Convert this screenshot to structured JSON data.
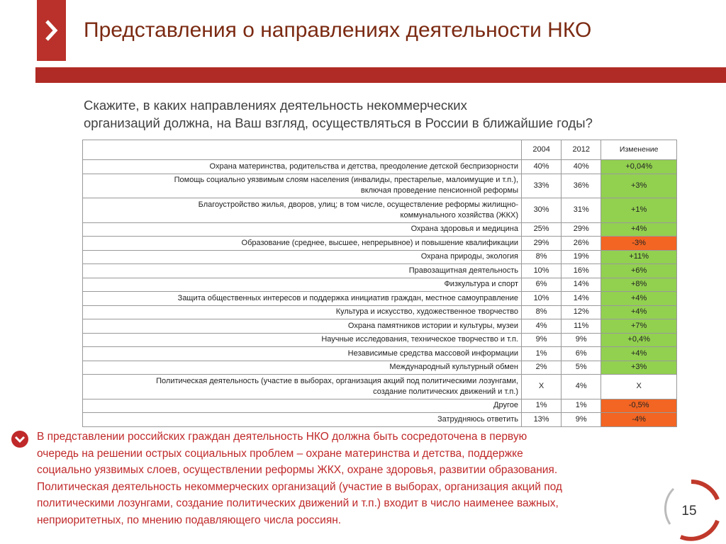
{
  "header": {
    "title": "Представления о направлениях деятельности НКО"
  },
  "question": [
    "Скажите, в каких направлениях деятельность некоммерческих",
    "организаций должна, на Ваш взгляд, осуществляться в России в ближайшие годы?"
  ],
  "table": {
    "columns": [
      "2004",
      "2012",
      "Изменение"
    ],
    "rows": [
      {
        "label": [
          "Охрана материнства, родительства и детства, преодоление детской беспризорности"
        ],
        "v2004": "40%",
        "v2012": "40%",
        "change": "+0,04%",
        "color": "#92d050"
      },
      {
        "label": [
          "Помощь социально уязвимым слоям населения (инвалиды, престарелые, малоимущие и т.п.),",
          "включая проведение пенсионной реформы"
        ],
        "v2004": "33%",
        "v2012": "36%",
        "change": "+3%",
        "color": "#92d050"
      },
      {
        "label": [
          "Благоустройство жилья, дворов, улиц; в том числе, осуществление реформы жилищно-",
          "коммунального хозяйства (ЖКХ)"
        ],
        "v2004": "30%",
        "v2012": "31%",
        "change": "+1%",
        "color": "#92d050"
      },
      {
        "label": [
          "Охрана здоровья и медицина"
        ],
        "v2004": "25%",
        "v2012": "29%",
        "change": "+4%",
        "color": "#92d050"
      },
      {
        "label": [
          "Образование (среднее, высшее, непрерывное) и повышение квалификации"
        ],
        "v2004": "29%",
        "v2012": "26%",
        "change": "-3%",
        "color": "#f26522"
      },
      {
        "label": [
          "Охрана природы, экология"
        ],
        "v2004": "8%",
        "v2012": "19%",
        "change": "+11%",
        "color": "#92d050"
      },
      {
        "label": [
          "Правозащитная деятельность"
        ],
        "v2004": "10%",
        "v2012": "16%",
        "change": "+6%",
        "color": "#92d050"
      },
      {
        "label": [
          "Физкультура и спорт"
        ],
        "v2004": "6%",
        "v2012": "14%",
        "change": "+8%",
        "color": "#92d050"
      },
      {
        "label": [
          "Защита общественных интересов и поддержка инициатив граждан, местное самоуправление"
        ],
        "v2004": "10%",
        "v2012": "14%",
        "change": "+4%",
        "color": "#92d050"
      },
      {
        "label": [
          "Культура и искусство, художественное творчество"
        ],
        "v2004": "8%",
        "v2012": "12%",
        "change": "+4%",
        "color": "#92d050"
      },
      {
        "label": [
          "Охрана памятников истории и культуры, музеи"
        ],
        "v2004": "4%",
        "v2012": "11%",
        "change": "+7%",
        "color": "#92d050"
      },
      {
        "label": [
          "Научные исследования, техническое творчество и т.п."
        ],
        "v2004": "9%",
        "v2012": "9%",
        "change": "+0,4%",
        "color": "#92d050"
      },
      {
        "label": [
          "Независимые средства массовой информации"
        ],
        "v2004": "1%",
        "v2012": "6%",
        "change": "+4%",
        "color": "#92d050"
      },
      {
        "label": [
          "Международный культурный обмен"
        ],
        "v2004": "2%",
        "v2012": "5%",
        "change": "+3%",
        "color": "#92d050"
      },
      {
        "label": [
          "Политическая деятельность (участие в выборах, организация акций под политическими лозунгами,",
          "создание политических движений и т.п.)"
        ],
        "v2004": "Х",
        "v2012": "4%",
        "change": "Х",
        "color": "#ffffff"
      },
      {
        "label": [
          "Другое"
        ],
        "v2004": "1%",
        "v2012": "1%",
        "change": "-0,5%",
        "color": "#f26522"
      },
      {
        "label": [
          "Затрудняюсь ответить"
        ],
        "v2004": "13%",
        "v2012": "9%",
        "change": "-4%",
        "color": "#f26522"
      }
    ]
  },
  "conclusion": [
    "В представлении российских граждан деятельность НКО должна быть сосредоточена в первую",
    "очередь на решении острых социальных проблем – охране материнства и детства, поддержке",
    "социально уязвимых слоев, осуществлении реформы ЖКХ, охране здоровья, развитии образования.",
    "Политическая деятельность некоммерческих организаций (участие в выборах, организация акций под",
    "политическими лозунгами, создание политических движений и т.п.) входит в число наименее важных,",
    "неприоритетных, по мнению подавляющего числа россиян."
  ],
  "page_number": "15"
}
